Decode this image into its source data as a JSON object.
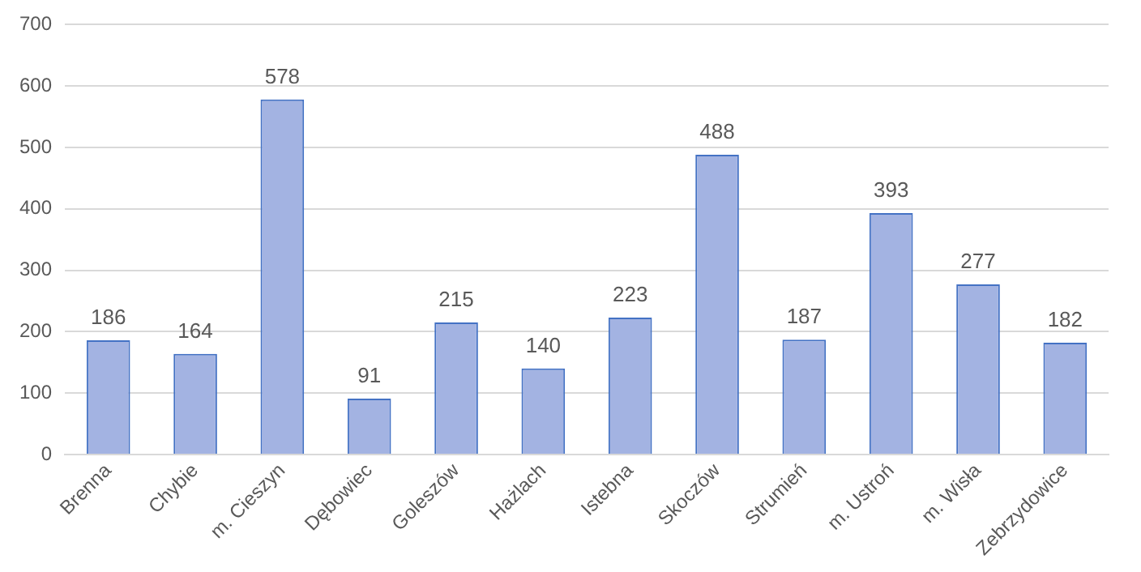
{
  "chart_data": {
    "type": "bar",
    "categories": [
      "Brenna",
      "Chybie",
      "m. Cieszyn",
      "Dębowiec",
      "Goleszów",
      "Hażlach",
      "Istebna",
      "Skoczów",
      "Strumień",
      "m. Ustroń",
      "m. Wisła",
      "Zebrzydowice"
    ],
    "values": [
      186,
      164,
      578,
      91,
      215,
      140,
      223,
      488,
      187,
      393,
      277,
      182
    ],
    "color": "#a3b3e2",
    "ylim": [
      0,
      700
    ],
    "yticks": [
      0,
      100,
      200,
      300,
      400,
      500,
      600,
      700
    ],
    "grid": "y",
    "data_labels": true,
    "legend": false
  }
}
